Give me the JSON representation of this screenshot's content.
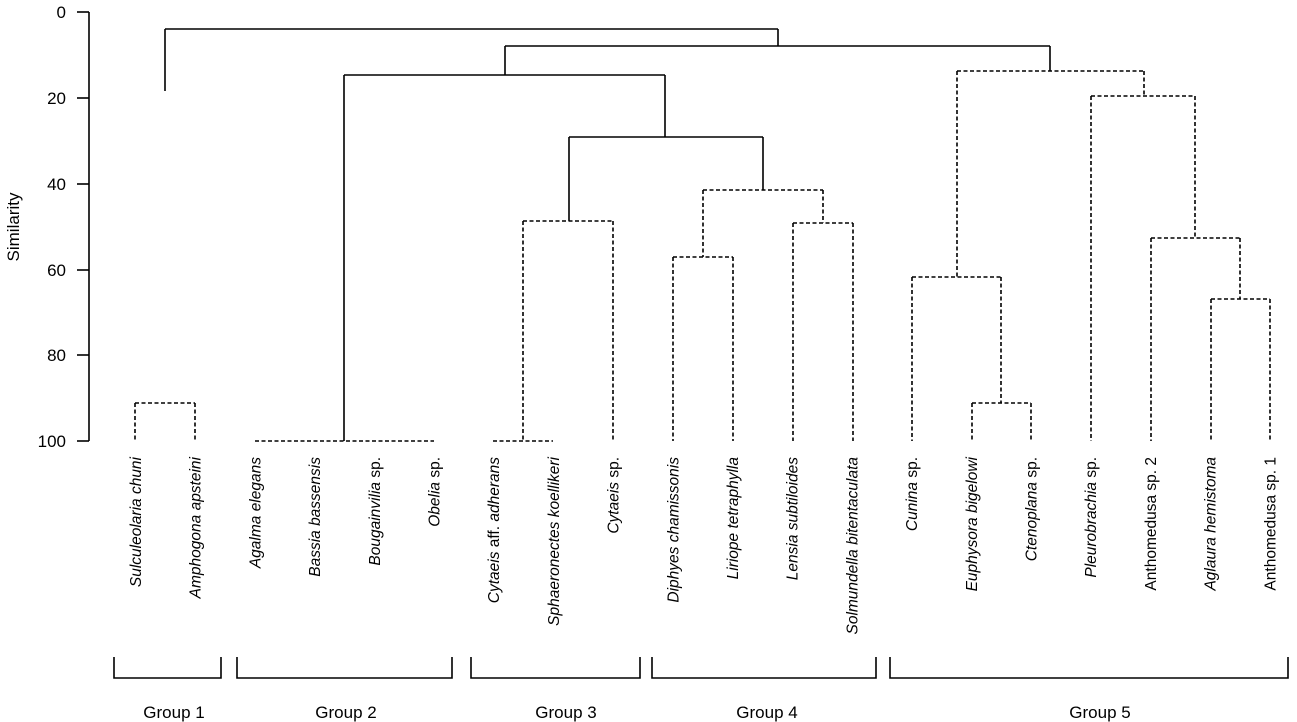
{
  "axis": {
    "title": "Similarity",
    "ticks": [
      "0",
      "20",
      "40",
      "60",
      "80",
      "100"
    ]
  },
  "leaves": [
    [
      {
        "t": "Sulculeolaria chuni",
        "i": true
      }
    ],
    [
      {
        "t": "Amphogona apsteini",
        "i": true
      }
    ],
    [
      {
        "t": "Agalma elegans",
        "i": true
      }
    ],
    [
      {
        "t": "Bassia bassensis",
        "i": true
      }
    ],
    [
      {
        "t": "Bougainvilia",
        "i": true
      },
      {
        "t": " sp.",
        "i": false
      }
    ],
    [
      {
        "t": "Obelia",
        "i": true
      },
      {
        "t": " sp.",
        "i": false
      }
    ],
    [
      {
        "t": "Cytaeis",
        "i": true
      },
      {
        "t": " aff. ",
        "i": false
      },
      {
        "t": "adherans",
        "i": true
      }
    ],
    [
      {
        "t": "Sphaeronectes koellikeri",
        "i": true
      }
    ],
    [
      {
        "t": "Cytaeis",
        "i": true
      },
      {
        "t": " sp.",
        "i": false
      }
    ],
    [
      {
        "t": "Diphyes chamissonis",
        "i": true
      }
    ],
    [
      {
        "t": "Liriope tetraphylla",
        "i": true
      }
    ],
    [
      {
        "t": "Lensia subtiloides",
        "i": true
      }
    ],
    [
      {
        "t": "Solmundella bitentaculata",
        "i": true
      }
    ],
    [
      {
        "t": "Cunina",
        "i": true
      },
      {
        "t": " sp.",
        "i": false
      }
    ],
    [
      {
        "t": "Euphysora bigelowi",
        "i": true
      }
    ],
    [
      {
        "t": "Ctenoplana",
        "i": true
      },
      {
        "t": " sp.",
        "i": false
      }
    ],
    [
      {
        "t": "Pleurobrachia",
        "i": true
      },
      {
        "t": " sp.",
        "i": false
      }
    ],
    [
      {
        "t": "Anthomedusa sp. 2",
        "i": false
      }
    ],
    [
      {
        "t": "Aglaura hemistoma",
        "i": true
      }
    ],
    [
      {
        "t": "Anthomedusa sp. 1",
        "i": false
      }
    ]
  ],
  "groups": [
    "Group 1",
    "Group 2",
    "Group 3",
    "Group 4",
    "Group 5"
  ]
}
